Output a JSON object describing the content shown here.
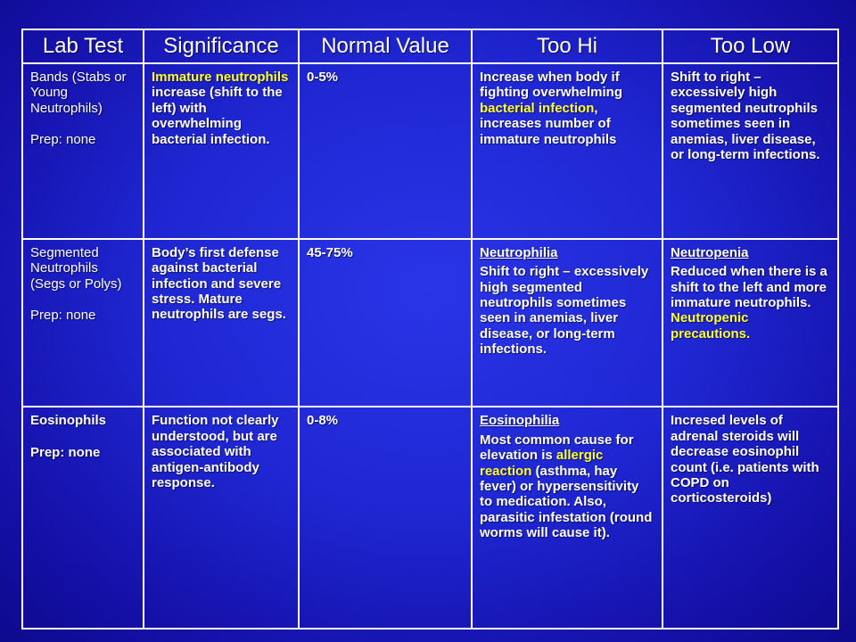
{
  "headers": [
    "Lab Test",
    "Significance",
    "Normal Value",
    "Too Hi",
    "Too Low"
  ],
  "rows": [
    {
      "lab_test": "Bands (Stabs or Young Neutrophils)",
      "prep": "Prep: none",
      "significance_highlight": "Immature neutrophils",
      "significance_rest": " increase (shift to the left) with overwhelming bacterial infection.",
      "normal_value": "0-5%",
      "too_hi_pre": "Increase when body if fighting overwhelming ",
      "too_hi_highlight": "bacterial infection",
      "too_hi_post": ", increases number of immature neutrophils",
      "too_low": "Shift to right – excessively high segmented neutrophils sometimes seen in anemias, liver disease, or long-term infections."
    },
    {
      "lab_test": "Segmented Neutrophils (Segs or Polys)",
      "prep": "Prep: none",
      "significance": "Body’s first defense against bacterial infection and severe stress. Mature neutrophils are segs.",
      "normal_value": "45-75%",
      "too_hi_title": "Neutrophilia",
      "too_hi_text": "Shift to right – excessively high segmented neutrophils sometimes seen in anemias, liver disease, or long-term infections.",
      "too_low_title": "Neutropenia",
      "too_low_text": "Reduced when there is a shift to the left and more immature neutrophils. ",
      "too_low_highlight": "Neutropenic precautions."
    },
    {
      "lab_test": "Eosinophils",
      "prep": "Prep: none",
      "significance": "Function not clearly understood, but are associated with antigen-antibody response.",
      "normal_value": "0-8%",
      "too_hi_title": "Eosinophilia",
      "too_hi_pre": "Most common cause for elevation is ",
      "too_hi_highlight": "allergic reaction",
      "too_hi_post": " (asthma, hay fever) or hypersensitivity to medication. Also, parasitic infestation (round worms will cause it).",
      "too_low": "Incresed levels of adrenal steroids will decrease eosinophil count (i.e. patients with COPD on corticosteroids)"
    }
  ],
  "colors": {
    "background": "#1f27d2",
    "text": "#ffffff",
    "highlight": "#ffff33",
    "border": "#ffffff"
  }
}
